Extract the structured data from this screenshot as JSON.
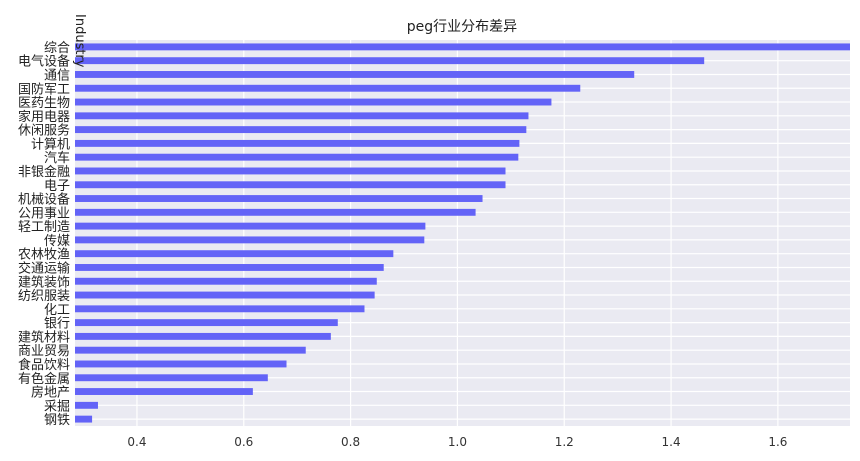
{
  "chart_data": {
    "type": "bar",
    "orientation": "horizontal",
    "title": "peg行业分布差异",
    "ylabel": "Industry",
    "xlabel": "",
    "xlim": [
      0.284,
      1.735
    ],
    "xticks": [
      "0.4",
      "0.6",
      "0.8",
      "1.0",
      "1.2",
      "1.4",
      "1.6"
    ],
    "grid": true,
    "bar_color": "#6363f7",
    "background": "#eaeaf2",
    "categories": [
      "综合",
      "电气设备",
      "通信",
      "国防军工",
      "医药生物",
      "家用电器",
      "休闲服务",
      "计算机",
      "汽车",
      "非银金融",
      "电子",
      "机械设备",
      "公用事业",
      "轻工制造",
      "传媒",
      "农林牧渔",
      "交通运输",
      "建筑装饰",
      "纺织服装",
      "化工",
      "银行",
      "建筑材料",
      "商业贸易",
      "食品饮料",
      "有色金属",
      "房地产",
      "采掘",
      "钢铁"
    ],
    "values": [
      1.75,
      1.462,
      1.331,
      1.23,
      1.176,
      1.133,
      1.129,
      1.116,
      1.114,
      1.09,
      1.09,
      1.047,
      1.034,
      0.94,
      0.938,
      0.88,
      0.862,
      0.849,
      0.845,
      0.826,
      0.776,
      0.763,
      0.716,
      0.68,
      0.645,
      0.617,
      0.327,
      0.316
    ]
  }
}
